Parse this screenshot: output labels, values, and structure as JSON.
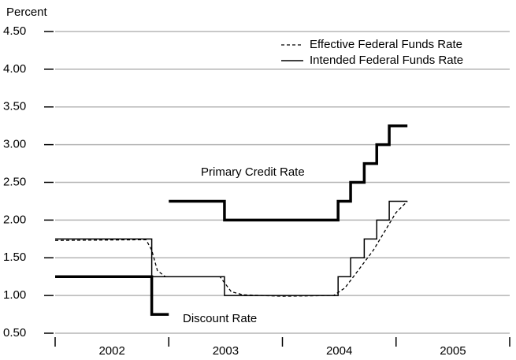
{
  "chart_data": {
    "type": "line",
    "y_label": "Percent",
    "ylim": [
      0.5,
      4.5
    ],
    "yticks": [
      {
        "value": 0.5,
        "label": "0.50"
      },
      {
        "value": 1.0,
        "label": "1.00"
      },
      {
        "value": 1.5,
        "label": "1.50"
      },
      {
        "value": 2.0,
        "label": "2.00"
      },
      {
        "value": 2.5,
        "label": "2.50"
      },
      {
        "value": 3.0,
        "label": "3.00"
      },
      {
        "value": 3.5,
        "label": "3.50"
      },
      {
        "value": 4.0,
        "label": "4.00"
      },
      {
        "value": 4.5,
        "label": "4.50"
      }
    ],
    "xlim": [
      2002,
      2006
    ],
    "xticks": [
      {
        "value": 2002.5,
        "label": "2002"
      },
      {
        "value": 2003.5,
        "label": "2003"
      },
      {
        "value": 2004.5,
        "label": "2004"
      },
      {
        "value": 2005.5,
        "label": "2005"
      }
    ],
    "grid": true,
    "legend": "upper right",
    "series": [
      {
        "name": "Effective Federal Funds Rate",
        "color": "#000000",
        "style": "dashed",
        "in_legend": true,
        "x": [
          2002,
          2002.8,
          2002.85,
          2002.9,
          2002.97,
          2003.45,
          2003.55,
          2003.65,
          2004.0,
          2004.45,
          2004.55,
          2004.7,
          2004.8,
          2004.9,
          2005.0,
          2005.1
        ],
        "values": [
          1.73,
          1.74,
          1.6,
          1.33,
          1.25,
          1.25,
          1.05,
          1.01,
          0.99,
          1.0,
          1.1,
          1.4,
          1.6,
          1.85,
          2.1,
          2.25
        ]
      },
      {
        "name": "Intended Federal Funds Rate",
        "color": "#000000",
        "style": "thin",
        "in_legend": true,
        "x": [
          2002,
          2002.85,
          2002.85,
          2003.49,
          2003.49,
          2004.49,
          2004.49,
          2004.6,
          2004.6,
          2004.72,
          2004.72,
          2004.83,
          2004.83,
          2004.94,
          2004.94,
          2005.1
        ],
        "values": [
          1.75,
          1.75,
          1.25,
          1.25,
          1.0,
          1.0,
          1.25,
          1.25,
          1.5,
          1.5,
          1.75,
          1.75,
          2.0,
          2.0,
          2.25,
          2.25
        ]
      },
      {
        "name": "Discount Rate",
        "color": "#000000",
        "style": "thick",
        "in_legend": false,
        "x": [
          2002,
          2002.85,
          2002.85,
          2003.0
        ],
        "values": [
          1.25,
          1.25,
          0.75,
          0.75
        ]
      },
      {
        "name": "Primary Credit Rate",
        "color": "#000000",
        "style": "thick",
        "in_legend": false,
        "x": [
          2003.0,
          2003.49,
          2003.49,
          2004.49,
          2004.49,
          2004.6,
          2004.6,
          2004.72,
          2004.72,
          2004.83,
          2004.83,
          2004.94,
          2004.94,
          2005.1
        ],
        "values": [
          2.25,
          2.25,
          2.0,
          2.0,
          2.25,
          2.25,
          2.5,
          2.5,
          2.75,
          2.75,
          3.0,
          3.0,
          3.25,
          3.25
        ]
      }
    ]
  }
}
